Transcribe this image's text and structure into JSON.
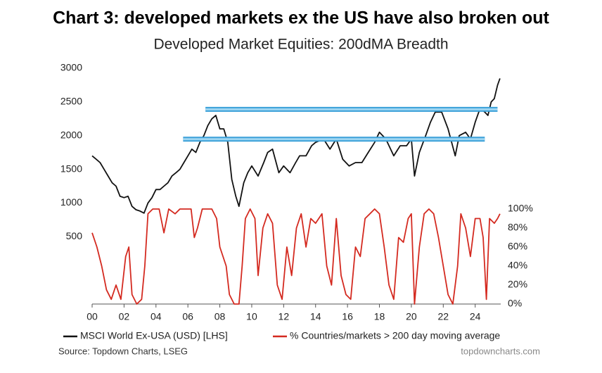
{
  "chart_data": {
    "type": "line",
    "title": "Chart 3: developed markets ex the US have also broken out",
    "subtitle": "Developed Market Equities: 200dMA Breadth",
    "source": "Source: Topdown Charts, LSEG",
    "watermark": "topdowncharts.com",
    "xlim": [
      2000,
      2025.6
    ],
    "xticks": [
      {
        "value": 2000,
        "label": "00"
      },
      {
        "value": 2002,
        "label": "02"
      },
      {
        "value": 2004,
        "label": "04"
      },
      {
        "value": 2006,
        "label": "06"
      },
      {
        "value": 2008,
        "label": "08"
      },
      {
        "value": 2010,
        "label": "10"
      },
      {
        "value": 2012,
        "label": "12"
      },
      {
        "value": 2014,
        "label": "14"
      },
      {
        "value": 2016,
        "label": "16"
      },
      {
        "value": 2018,
        "label": "18"
      },
      {
        "value": 2020,
        "label": "20"
      },
      {
        "value": 2022,
        "label": "22"
      },
      {
        "value": 2024,
        "label": "24"
      }
    ],
    "ylim": [
      -500,
      3000
    ],
    "yticks": [
      500,
      1000,
      1500,
      2000,
      2500,
      3000
    ],
    "y2lim": [
      0,
      100
    ],
    "y2ticks": [
      {
        "value": 0,
        "label": "0%"
      },
      {
        "value": 20,
        "label": "20%"
      },
      {
        "value": 40,
        "label": "40%"
      },
      {
        "value": 60,
        "label": "60%"
      },
      {
        "value": 80,
        "label": "80%"
      },
      {
        "value": 100,
        "label": "100%"
      }
    ],
    "series": [
      {
        "name": "MSCI World Ex-USA (USD) [LHS]",
        "color": "#111111",
        "x": [
          2000.0,
          2000.25,
          2000.5,
          2000.75,
          2001.0,
          2001.25,
          2001.5,
          2001.75,
          2002.0,
          2002.25,
          2002.5,
          2002.75,
          2003.0,
          2003.25,
          2003.5,
          2003.75,
          2004.0,
          2004.25,
          2004.5,
          2004.75,
          2005.0,
          2005.25,
          2005.5,
          2005.75,
          2006.0,
          2006.25,
          2006.5,
          2006.75,
          2007.0,
          2007.25,
          2007.5,
          2007.75,
          2008.0,
          2008.25,
          2008.5,
          2008.75,
          2009.0,
          2009.2,
          2009.5,
          2009.75,
          2010.0,
          2010.4,
          2010.75,
          2011.0,
          2011.3,
          2011.7,
          2012.0,
          2012.4,
          2012.75,
          2013.0,
          2013.4,
          2013.75,
          2014.0,
          2014.5,
          2014.9,
          2015.3,
          2015.7,
          2016.1,
          2016.5,
          2016.9,
          2017.3,
          2017.7,
          2018.0,
          2018.4,
          2018.9,
          2019.3,
          2019.7,
          2020.0,
          2020.2,
          2020.5,
          2020.9,
          2021.2,
          2021.5,
          2021.9,
          2022.3,
          2022.75,
          2023.0,
          2023.4,
          2023.7,
          2024.0,
          2024.3,
          2024.6,
          2024.8,
          2025.0,
          2025.2,
          2025.4,
          2025.55
        ],
        "values": [
          1700,
          1650,
          1600,
          1500,
          1400,
          1300,
          1250,
          1100,
          1080,
          1100,
          950,
          900,
          880,
          850,
          1000,
          1080,
          1200,
          1200,
          1250,
          1300,
          1400,
          1450,
          1500,
          1600,
          1700,
          1800,
          1750,
          1900,
          2000,
          2150,
          2250,
          2300,
          2100,
          2100,
          1900,
          1350,
          1100,
          950,
          1300,
          1450,
          1550,
          1400,
          1600,
          1750,
          1800,
          1450,
          1550,
          1450,
          1600,
          1700,
          1700,
          1850,
          1900,
          1950,
          1800,
          1950,
          1650,
          1550,
          1600,
          1600,
          1750,
          1900,
          2050,
          1950,
          1700,
          1850,
          1850,
          1950,
          1400,
          1750,
          2000,
          2200,
          2350,
          2350,
          2100,
          1700,
          2000,
          2050,
          1950,
          2200,
          2400,
          2350,
          2300,
          2500,
          2550,
          2750,
          2850
        ]
      },
      {
        "name": "% Countries/markets > 200 day moving average",
        "color": "#d42a20",
        "axis": "y2",
        "x": [
          2000.0,
          2000.3,
          2000.6,
          2000.9,
          2001.2,
          2001.5,
          2001.8,
          2002.1,
          2002.3,
          2002.5,
          2002.8,
          2003.1,
          2003.3,
          2003.5,
          2003.8,
          2004.2,
          2004.5,
          2004.8,
          2005.2,
          2005.5,
          2005.8,
          2006.2,
          2006.4,
          2006.6,
          2006.9,
          2007.2,
          2007.5,
          2007.8,
          2008.0,
          2008.2,
          2008.4,
          2008.6,
          2008.9,
          2009.2,
          2009.4,
          2009.6,
          2009.9,
          2010.2,
          2010.4,
          2010.7,
          2011.0,
          2011.3,
          2011.6,
          2011.9,
          2012.2,
          2012.5,
          2012.8,
          2013.1,
          2013.4,
          2013.7,
          2014.0,
          2014.4,
          2014.7,
          2015.0,
          2015.3,
          2015.6,
          2015.9,
          2016.2,
          2016.5,
          2016.8,
          2017.1,
          2017.4,
          2017.7,
          2018.0,
          2018.3,
          2018.6,
          2018.9,
          2019.2,
          2019.5,
          2019.8,
          2020.0,
          2020.2,
          2020.5,
          2020.8,
          2021.1,
          2021.4,
          2021.7,
          2022.0,
          2022.3,
          2022.6,
          2022.9,
          2023.1,
          2023.4,
          2023.7,
          2024.0,
          2024.3,
          2024.5,
          2024.7,
          2024.9,
          2025.2,
          2025.4,
          2025.55
        ],
        "values": [
          75,
          60,
          40,
          15,
          5,
          20,
          5,
          50,
          60,
          10,
          0,
          5,
          40,
          95,
          100,
          100,
          75,
          100,
          95,
          100,
          100,
          100,
          70,
          80,
          100,
          100,
          100,
          90,
          60,
          50,
          40,
          10,
          0,
          0,
          40,
          90,
          100,
          90,
          30,
          80,
          95,
          85,
          20,
          5,
          60,
          30,
          80,
          95,
          60,
          90,
          85,
          95,
          40,
          20,
          90,
          30,
          10,
          5,
          60,
          50,
          90,
          95,
          100,
          95,
          60,
          20,
          5,
          70,
          65,
          90,
          95,
          0,
          60,
          95,
          100,
          95,
          70,
          40,
          10,
          0,
          40,
          95,
          80,
          50,
          90,
          90,
          70,
          5,
          90,
          85,
          90,
          95
        ]
      }
    ],
    "resistance_lines": [
      {
        "y": 2390,
        "x": [
          2007.1,
          2025.4
        ]
      },
      {
        "y": 1948,
        "x": [
          2005.7,
          2024.6
        ]
      }
    ]
  }
}
